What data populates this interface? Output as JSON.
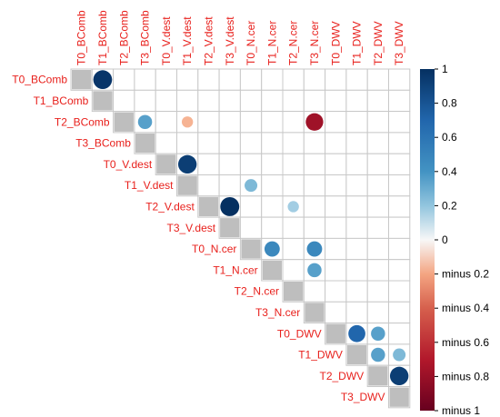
{
  "chart_data": {
    "type": "heatmap",
    "subtype": "correlation-matrix-upper-triangle",
    "variables": [
      "T0_BComb",
      "T1_BComb",
      "T2_BComb",
      "T3_BComb",
      "T0_V.dest",
      "T1_V.dest",
      "T2_V.dest",
      "T3_V.dest",
      "T0_N.cer",
      "T1_N.cer",
      "T2_N.cer",
      "T3_N.cer",
      "T0_DWV",
      "T1_DWV",
      "T2_DWV",
      "T3_DWV"
    ],
    "cells": [
      {
        "row": 0,
        "col": 1,
        "value": 0.98
      },
      {
        "row": 2,
        "col": 3,
        "value": 0.55
      },
      {
        "row": 2,
        "col": 5,
        "value": -0.35
      },
      {
        "row": 2,
        "col": 11,
        "value": -0.85
      },
      {
        "row": 4,
        "col": 5,
        "value": 0.95
      },
      {
        "row": 5,
        "col": 8,
        "value": 0.45
      },
      {
        "row": 6,
        "col": 7,
        "value": 1.0
      },
      {
        "row": 6,
        "col": 10,
        "value": 0.35
      },
      {
        "row": 8,
        "col": 9,
        "value": 0.65
      },
      {
        "row": 8,
        "col": 11,
        "value": 0.65
      },
      {
        "row": 9,
        "col": 11,
        "value": 0.55
      },
      {
        "row": 12,
        "col": 13,
        "value": 0.8
      },
      {
        "row": 12,
        "col": 14,
        "value": 0.55
      },
      {
        "row": 13,
        "col": 14,
        "value": 0.55
      },
      {
        "row": 13,
        "col": 15,
        "value": 0.45
      },
      {
        "row": 14,
        "col": 15,
        "value": 0.95
      }
    ],
    "diagonal_color": "#bebebe",
    "colorbar": {
      "range": [
        -1,
        1
      ],
      "tick_labels": [
        "1",
        "0.8",
        "0.6",
        "0.4",
        "0.2",
        "0",
        "minus 0.2",
        "minus 0.4",
        "minus 0.6",
        "minus 0.8",
        "minus 1"
      ]
    },
    "colors": {
      "positive_strong": "#053061",
      "positive_mid": "#4393c3",
      "neutral": "#f7f7f7",
      "negative_mid": "#d6604d",
      "negative_strong": "#67001f",
      "label": "#e8201c"
    }
  }
}
